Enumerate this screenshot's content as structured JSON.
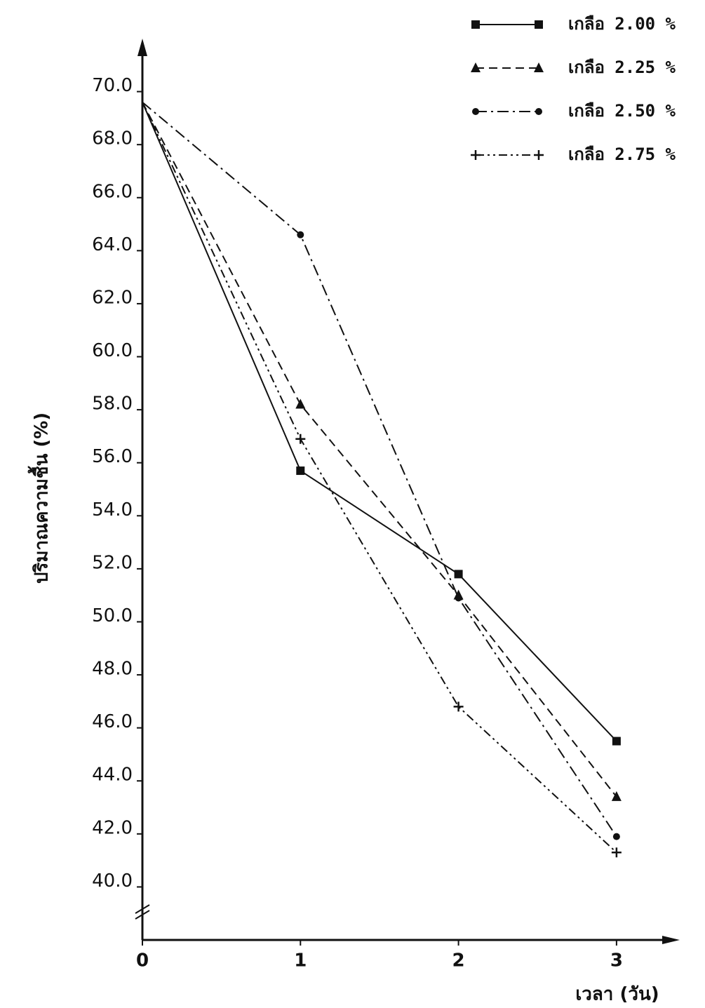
{
  "chart_data": {
    "type": "line",
    "x_label": "เวลา (วัน)",
    "y_label": "ปริมาณความชื้น (%)",
    "x": [
      0,
      1,
      2,
      3
    ],
    "xlim": [
      0,
      3.4
    ],
    "xticks": [
      0,
      1,
      2,
      3
    ],
    "ylim": [
      38,
      72
    ],
    "yticks": [
      {
        "value": 40,
        "label": "40.0"
      },
      {
        "value": 42,
        "label": "42.0"
      },
      {
        "value": 44,
        "label": "44.0"
      },
      {
        "value": 46,
        "label": "46.0"
      },
      {
        "value": 48,
        "label": "48.0"
      },
      {
        "value": 50,
        "label": "50.0"
      },
      {
        "value": 52,
        "label": "52.0"
      },
      {
        "value": 54,
        "label": "54.0"
      },
      {
        "value": 56,
        "label": "56.0"
      },
      {
        "value": 58,
        "label": "58.0"
      },
      {
        "value": 60,
        "label": "60.0"
      },
      {
        "value": 62,
        "label": "62.0"
      },
      {
        "value": 64,
        "label": "64.0"
      },
      {
        "value": 66,
        "label": "66.0"
      },
      {
        "value": 68,
        "label": "68.0"
      },
      {
        "value": 70,
        "label": "70.0"
      }
    ],
    "grid": false,
    "legend": "top-right",
    "series": [
      {
        "name": "เกลือ 2.00 %",
        "color": "#111111",
        "marker": "square",
        "dash": "solid",
        "values": [
          69.6,
          55.7,
          51.8,
          45.5
        ]
      },
      {
        "name": "เกลือ 2.25 %",
        "color": "#111111",
        "marker": "triangle",
        "dash": "dashed",
        "values": [
          69.6,
          58.2,
          51.0,
          43.4
        ]
      },
      {
        "name": "เกลือ 2.50 %",
        "color": "#111111",
        "marker": "circle",
        "dash": "dashdot",
        "values": [
          69.6,
          64.6,
          50.9,
          41.9
        ]
      },
      {
        "name": "เกลือ 2.75 %",
        "color": "#111111",
        "marker": "plus",
        "dash": "dashdotdot",
        "values": [
          69.6,
          56.9,
          46.8,
          41.3
        ]
      }
    ]
  }
}
